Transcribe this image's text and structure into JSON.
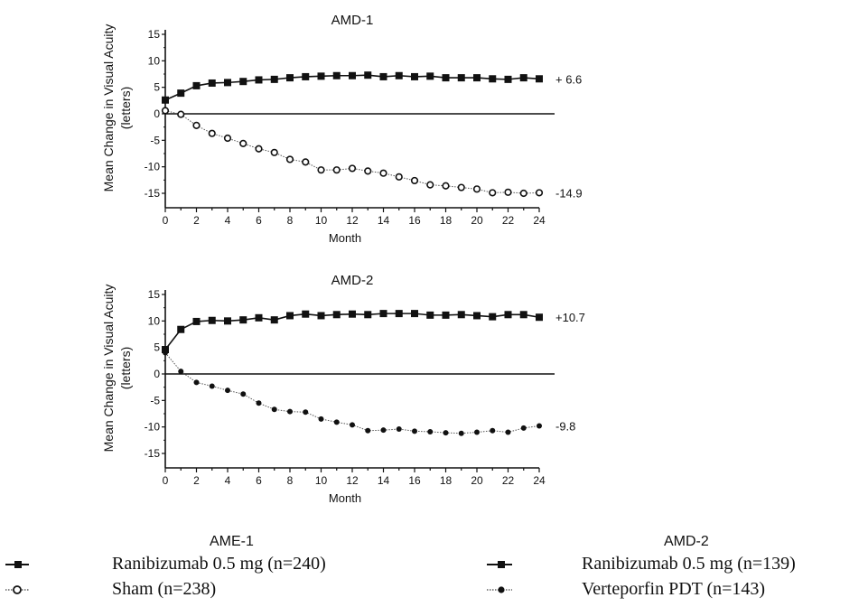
{
  "chart_data": [
    {
      "type": "line",
      "title": "AMD-1",
      "xlabel": "Month",
      "ylabel": "Mean Change in Visual Acuity\n(letters)",
      "xlim": [
        0,
        24
      ],
      "ylim": [
        -17.5,
        15.5
      ],
      "xticks": [
        0,
        2,
        4,
        6,
        8,
        10,
        12,
        14,
        16,
        18,
        20,
        22,
        24
      ],
      "yticks": [
        15,
        10,
        5,
        0,
        -5,
        -10,
        -15
      ],
      "grid": false,
      "zero_line": true,
      "x": [
        0,
        1,
        2,
        3,
        4,
        5,
        6,
        7,
        8,
        9,
        10,
        11,
        12,
        13,
        14,
        15,
        16,
        17,
        18,
        19,
        20,
        21,
        22,
        23,
        24
      ],
      "series": [
        {
          "marker": "filled-square",
          "color": "#111111",
          "values": [
            2.6,
            3.9,
            5.3,
            5.8,
            5.9,
            6.1,
            6.4,
            6.5,
            6.8,
            7.0,
            7.1,
            7.2,
            7.2,
            7.3,
            7.0,
            7.2,
            7.0,
            7.1,
            6.8,
            6.8,
            6.8,
            6.6,
            6.5,
            6.8,
            6.6
          ],
          "end_label": "+ 6.6"
        },
        {
          "marker": "open-circle",
          "color": "#111111",
          "values": [
            0.6,
            -0.1,
            -2.2,
            -3.7,
            -4.6,
            -5.6,
            -6.6,
            -7.3,
            -8.6,
            -9.1,
            -10.6,
            -10.6,
            -10.3,
            -10.8,
            -11.2,
            -11.9,
            -12.6,
            -13.4,
            -13.6,
            -13.9,
            -14.2,
            -14.9,
            -14.8,
            -15.0,
            -14.9
          ],
          "end_label": "-14.9"
        }
      ]
    },
    {
      "type": "line",
      "title": "AMD-2",
      "xlabel": "Month",
      "ylabel": "Mean Change in Visual Acuity\n(letters)",
      "xlim": [
        0,
        24
      ],
      "ylim": [
        -17.5,
        15.5
      ],
      "xticks": [
        0,
        2,
        4,
        6,
        8,
        10,
        12,
        14,
        16,
        18,
        20,
        22,
        24
      ],
      "yticks": [
        15,
        10,
        5,
        0,
        -5,
        -10,
        -15
      ],
      "grid": false,
      "zero_line": true,
      "x": [
        0,
        1,
        2,
        3,
        4,
        5,
        6,
        7,
        8,
        9,
        10,
        11,
        12,
        13,
        14,
        15,
        16,
        17,
        18,
        19,
        20,
        21,
        22,
        23,
        24
      ],
      "series": [
        {
          "marker": "filled-square",
          "color": "#111111",
          "values": [
            4.6,
            8.4,
            9.9,
            10.1,
            10.0,
            10.2,
            10.6,
            10.2,
            11.0,
            11.3,
            11.0,
            11.2,
            11.3,
            11.2,
            11.4,
            11.4,
            11.4,
            11.1,
            11.1,
            11.2,
            11.0,
            10.8,
            11.2,
            11.2,
            10.7
          ],
          "end_label": "+10.7"
        },
        {
          "marker": "filled-circle",
          "color": "#111111",
          "values": [
            4.0,
            0.5,
            -1.6,
            -2.3,
            -3.1,
            -3.8,
            -5.5,
            -6.7,
            -7.1,
            -7.2,
            -8.5,
            -9.1,
            -9.6,
            -10.7,
            -10.6,
            -10.4,
            -10.8,
            -10.9,
            -11.1,
            -11.2,
            -11.0,
            -10.7,
            -11.0,
            -10.2,
            -9.8
          ],
          "end_label": "-9.8"
        }
      ]
    }
  ],
  "legend": {
    "left": {
      "heading": "AME-1",
      "entries": [
        {
          "label": "Ranibizumab 0.5 mg (n=240)",
          "marker": "filled-square"
        },
        {
          "label": "Sham (n=238)",
          "marker": "open-circle"
        }
      ]
    },
    "right": {
      "heading": "AMD-2",
      "entries": [
        {
          "label": "Ranibizumab 0.5 mg (n=139)",
          "marker": "filled-square"
        },
        {
          "label": "Verteporfin PDT (n=143)",
          "marker": "filled-circle"
        }
      ]
    }
  }
}
